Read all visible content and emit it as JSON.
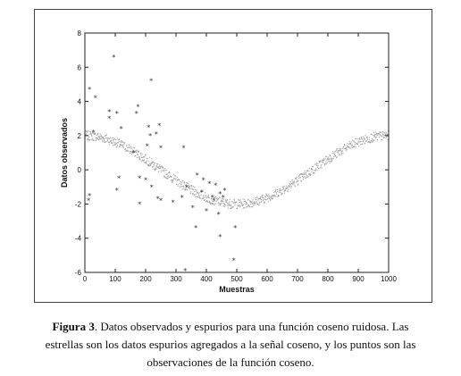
{
  "caption": {
    "label": "Figura 3",
    "line1": ". Datos observados y espurios para una función coseno ruidosa. Las",
    "line2": "estrellas son los datos espurios agregados a la señal coseno, y los puntos son las",
    "line3": "observaciones de la función coseno."
  },
  "chart_data": {
    "type": "scatter",
    "xlabel": "Muestras",
    "ylabel": "Datos observados",
    "xlim": [
      0,
      1000
    ],
    "ylim": [
      -6,
      8
    ],
    "xticks": [
      "0",
      "100",
      "200",
      "300",
      "400",
      "500",
      "600",
      "700",
      "800",
      "900",
      "1000"
    ],
    "yticks": [
      "-6",
      "-4",
      "-2",
      "0",
      "2",
      "4",
      "6",
      "8"
    ],
    "grid": false,
    "series": [
      {
        "marker": "dot",
        "color": "#9a9a9a",
        "function": "2*cos(2*pi*x/1000)",
        "n": 1000
      },
      {
        "marker": "star",
        "color": "#333333",
        "points": [
          [
            12,
            -1.8
          ],
          [
            15,
            -1.5
          ],
          [
            15,
            4.7
          ],
          [
            28,
            2.2
          ],
          [
            35,
            4.2
          ],
          [
            80,
            3.0
          ],
          [
            80,
            3.4
          ],
          [
            95,
            6.6
          ],
          [
            105,
            -1.2
          ],
          [
            105,
            3.3
          ],
          [
            112,
            -0.5
          ],
          [
            120,
            2.4
          ],
          [
            160,
            1.0
          ],
          [
            170,
            3.3
          ],
          [
            175,
            3.7
          ],
          [
            180,
            -0.5
          ],
          [
            180,
            -2.0
          ],
          [
            200,
            -0.6
          ],
          [
            205,
            1.4
          ],
          [
            210,
            2.5
          ],
          [
            215,
            2.0
          ],
          [
            218,
            5.2
          ],
          [
            220,
            -1.0
          ],
          [
            235,
            2.1
          ],
          [
            240,
            -1.7
          ],
          [
            245,
            2.6
          ],
          [
            250,
            -1.8
          ],
          [
            250,
            1.3
          ],
          [
            290,
            -1.9
          ],
          [
            320,
            -1.6
          ],
          [
            325,
            1.3
          ],
          [
            330,
            -5.9
          ],
          [
            335,
            -1.0
          ],
          [
            355,
            -2.2
          ],
          [
            365,
            -3.4
          ],
          [
            370,
            -0.3
          ],
          [
            385,
            -1.3
          ],
          [
            390,
            -0.6
          ],
          [
            400,
            -2.4
          ],
          [
            410,
            -0.8
          ],
          [
            420,
            -1.6
          ],
          [
            425,
            -1.8
          ],
          [
            430,
            -0.9
          ],
          [
            440,
            -2.6
          ],
          [
            445,
            -1.4
          ],
          [
            445,
            -3.9
          ],
          [
            455,
            -1.6
          ],
          [
            460,
            -1.2
          ],
          [
            490,
            -5.3
          ],
          [
            495,
            -3.4
          ]
        ]
      }
    ]
  }
}
